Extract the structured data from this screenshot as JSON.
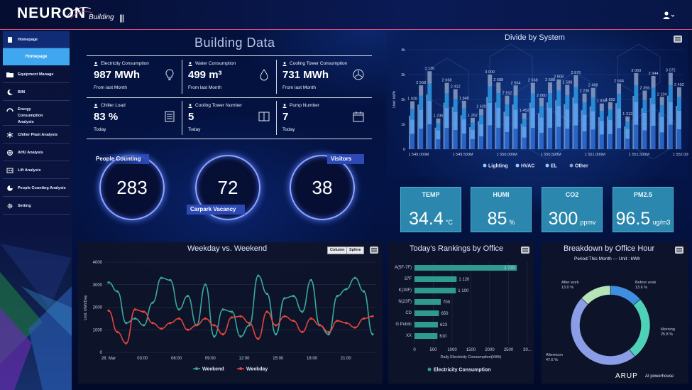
{
  "header": {
    "logo": "NEURON",
    "logo_sub": "Building",
    "hamburger": "|||"
  },
  "sidebar": {
    "items": [
      {
        "label": "Homepage",
        "icon": "building-icon"
      },
      {
        "label": "Equipment Manage",
        "icon": "folder-icon"
      },
      {
        "label": "BIM",
        "icon": "moon-icon"
      },
      {
        "label": "Energy Consumption Analysis",
        "icon": "gauge-icon"
      },
      {
        "label": "Chiller Plant Analysis",
        "icon": "chiller-icon"
      },
      {
        "label": "AHU Analysis",
        "icon": "fan-icon"
      },
      {
        "label": "Lift Analysis",
        "icon": "lift-icon"
      },
      {
        "label": "People Counting Analysis",
        "icon": "pie-icon"
      },
      {
        "label": "Setting",
        "icon": "gear-icon"
      }
    ],
    "homepage_sub": "Homepage"
  },
  "building": {
    "title": "Building Data",
    "stats": [
      {
        "label": "Electricity Consumption",
        "value": "987 MWh",
        "sub": "From last Month",
        "icon": "bulb-icon"
      },
      {
        "label": "Water Consumption",
        "value": "499 m³",
        "sub": "From last Month",
        "icon": "drop-icon"
      },
      {
        "label": "Cooling Tower Consumption",
        "value": "731 MWh",
        "sub": "From last Month",
        "icon": "fan-icon"
      },
      {
        "label": "Chiller Load",
        "value": "83 %",
        "sub": "Today",
        "icon": "list-icon"
      },
      {
        "label": "Cooling Tower Number",
        "value": "5",
        "sub": "Today",
        "icon": "book-icon"
      },
      {
        "label": "Pump Number",
        "value": "7",
        "sub": "Today",
        "icon": "calendar-icon"
      }
    ]
  },
  "counters": {
    "people_label": "People Counting",
    "people_value": "283",
    "carpark_label": "Carpark Vacancy",
    "carpark_value": "72",
    "visitors_label": "Visitors",
    "visitors_value": "38"
  },
  "sensors": [
    {
      "label": "TEMP",
      "value": "34.4",
      "unit": "°C"
    },
    {
      "label": "HUMI",
      "value": "85",
      "unit": "%"
    },
    {
      "label": "CO2",
      "value": "300",
      "unit": "ppmv"
    },
    {
      "label": "PM2.5",
      "value": "96.5",
      "unit": "ug/m3"
    }
  ],
  "footer": {
    "arup": "ARUP",
    "powerhouse": "AI powerhouse"
  },
  "colors": {
    "accent": "#3ea7f0",
    "weekend": "#3aa79a",
    "weekday": "#e5453d",
    "ranking_bar": "#2f9b8e"
  },
  "chart_data": [
    {
      "type": "bar",
      "title": "Divide by System",
      "ylabel": "Unit: kWh",
      "ylim": [
        0,
        4000
      ],
      "y_ticks": [
        "0",
        "1k",
        "2k",
        "3k",
        "4k"
      ],
      "x_ticks": [
        "1 549.000M",
        "1 549.500M",
        "1 550.000M",
        "1 550.500M",
        "1 551.000M",
        "1 551.500M",
        "1 552.000M"
      ],
      "legend": [
        "Lighting",
        "HVAC",
        "EL",
        "Other"
      ],
      "series_colors": [
        "#2f6fd6",
        "#66b3ff",
        "#2f9be8",
        "#8aa0c8"
      ],
      "data_labels": [
        "1 928",
        "2 568",
        "3 136",
        "1 236",
        "2 668",
        "2 412",
        "1 948",
        "1 262",
        "1 620",
        "3 000",
        "2 688",
        "2 152",
        "2 564",
        "1 452",
        "2 668",
        "2 060",
        "2 688",
        "2 808",
        "2 588",
        "2 976",
        "2 236",
        "2 468",
        "1 836",
        "1 892",
        "2 644",
        "1 312",
        "3 060",
        "2 356",
        "2 944",
        "2 104",
        "3 072",
        "2 492"
      ],
      "values": [
        1928,
        2568,
        3136,
        1236,
        2668,
        2412,
        1948,
        1262,
        1620,
        3000,
        2688,
        2152,
        2564,
        1452,
        2668,
        2060,
        2688,
        2808,
        2588,
        2976,
        2236,
        2468,
        1836,
        1892,
        2644,
        1312,
        3060,
        2356,
        2944,
        2104,
        3072,
        2492
      ],
      "legend_position": "bottom"
    },
    {
      "type": "line",
      "title": "Weekday vs. Weekend",
      "ylabel": "Unit: kWh/Day",
      "ylim": [
        0,
        4000
      ],
      "y_ticks": [
        "0",
        "1000",
        "2000",
        "3000",
        "4000"
      ],
      "x_ticks": [
        "28. Mar",
        "03:00",
        "06:00",
        "09:00",
        "12:00",
        "15:00",
        "18:00",
        "21:00"
      ],
      "buttons": [
        "Column",
        "Spline"
      ],
      "series": [
        {
          "name": "Weekend",
          "color": "#3aa79a",
          "values": [
            3100,
            2700,
            1300,
            1500,
            1200,
            2200,
            3300,
            3200,
            1900,
            2500,
            1200,
            3000,
            700,
            1900,
            1800,
            700,
            1200,
            3400,
            2600,
            800,
            2400,
            2500,
            1800,
            3200,
            1200,
            800,
            2500,
            2800,
            3300,
            2700,
            800
          ]
        },
        {
          "name": "Weekday",
          "color": "#e5453d",
          "values": [
            1850,
            900,
            400,
            1900,
            1800,
            1300,
            1050,
            1300,
            1500,
            1000,
            1200,
            1500,
            1200,
            800,
            1550,
            1600,
            1300,
            600,
            1800,
            1200,
            1600,
            1400,
            900,
            1500,
            1200,
            900,
            1400,
            1300,
            1100,
            1500,
            1600
          ]
        }
      ],
      "legend_position": "bottom"
    },
    {
      "type": "bar",
      "orientation": "horizontal",
      "title": "Today's Rankings by Office",
      "xlabel": "Daily Electricity Consumption(kWh)",
      "categories": [
        "A(5F-7F)",
        "37F",
        "K(19F)",
        "N(23F)",
        "CD",
        "G Public",
        "XX"
      ],
      "values": [
        2720,
        1120,
        1100,
        700,
        650,
        623,
        610
      ],
      "value_labels": [
        "2 720",
        "1 120",
        "1 100",
        "700",
        "650",
        "623",
        "610"
      ],
      "x_ticks": [
        "0",
        "500",
        "1000",
        "1500",
        "2000",
        "2500",
        "30..."
      ],
      "xlim": [
        0,
        3000
      ],
      "legend": [
        "Electricity Consumption"
      ],
      "legend_position": "bottom"
    },
    {
      "type": "pie",
      "title": "Breakdown by Office Hour",
      "subtitle": "Period:This Month --- Unit : kWh",
      "slices": [
        {
          "label": "Before work",
          "value": 13.6,
          "display": "13.6 %",
          "color": "#3f8fe0"
        },
        {
          "label": "Morning",
          "value": 25.8,
          "display": "25.8 %",
          "color": "#4fd1b8"
        },
        {
          "label": "Afternoon",
          "value": 47.6,
          "display": "47.6 %",
          "color": "#8b9de6"
        },
        {
          "label": "After work",
          "value": 13.0,
          "display": "13.0 %",
          "color": "#b6e3b8"
        }
      ]
    }
  ]
}
